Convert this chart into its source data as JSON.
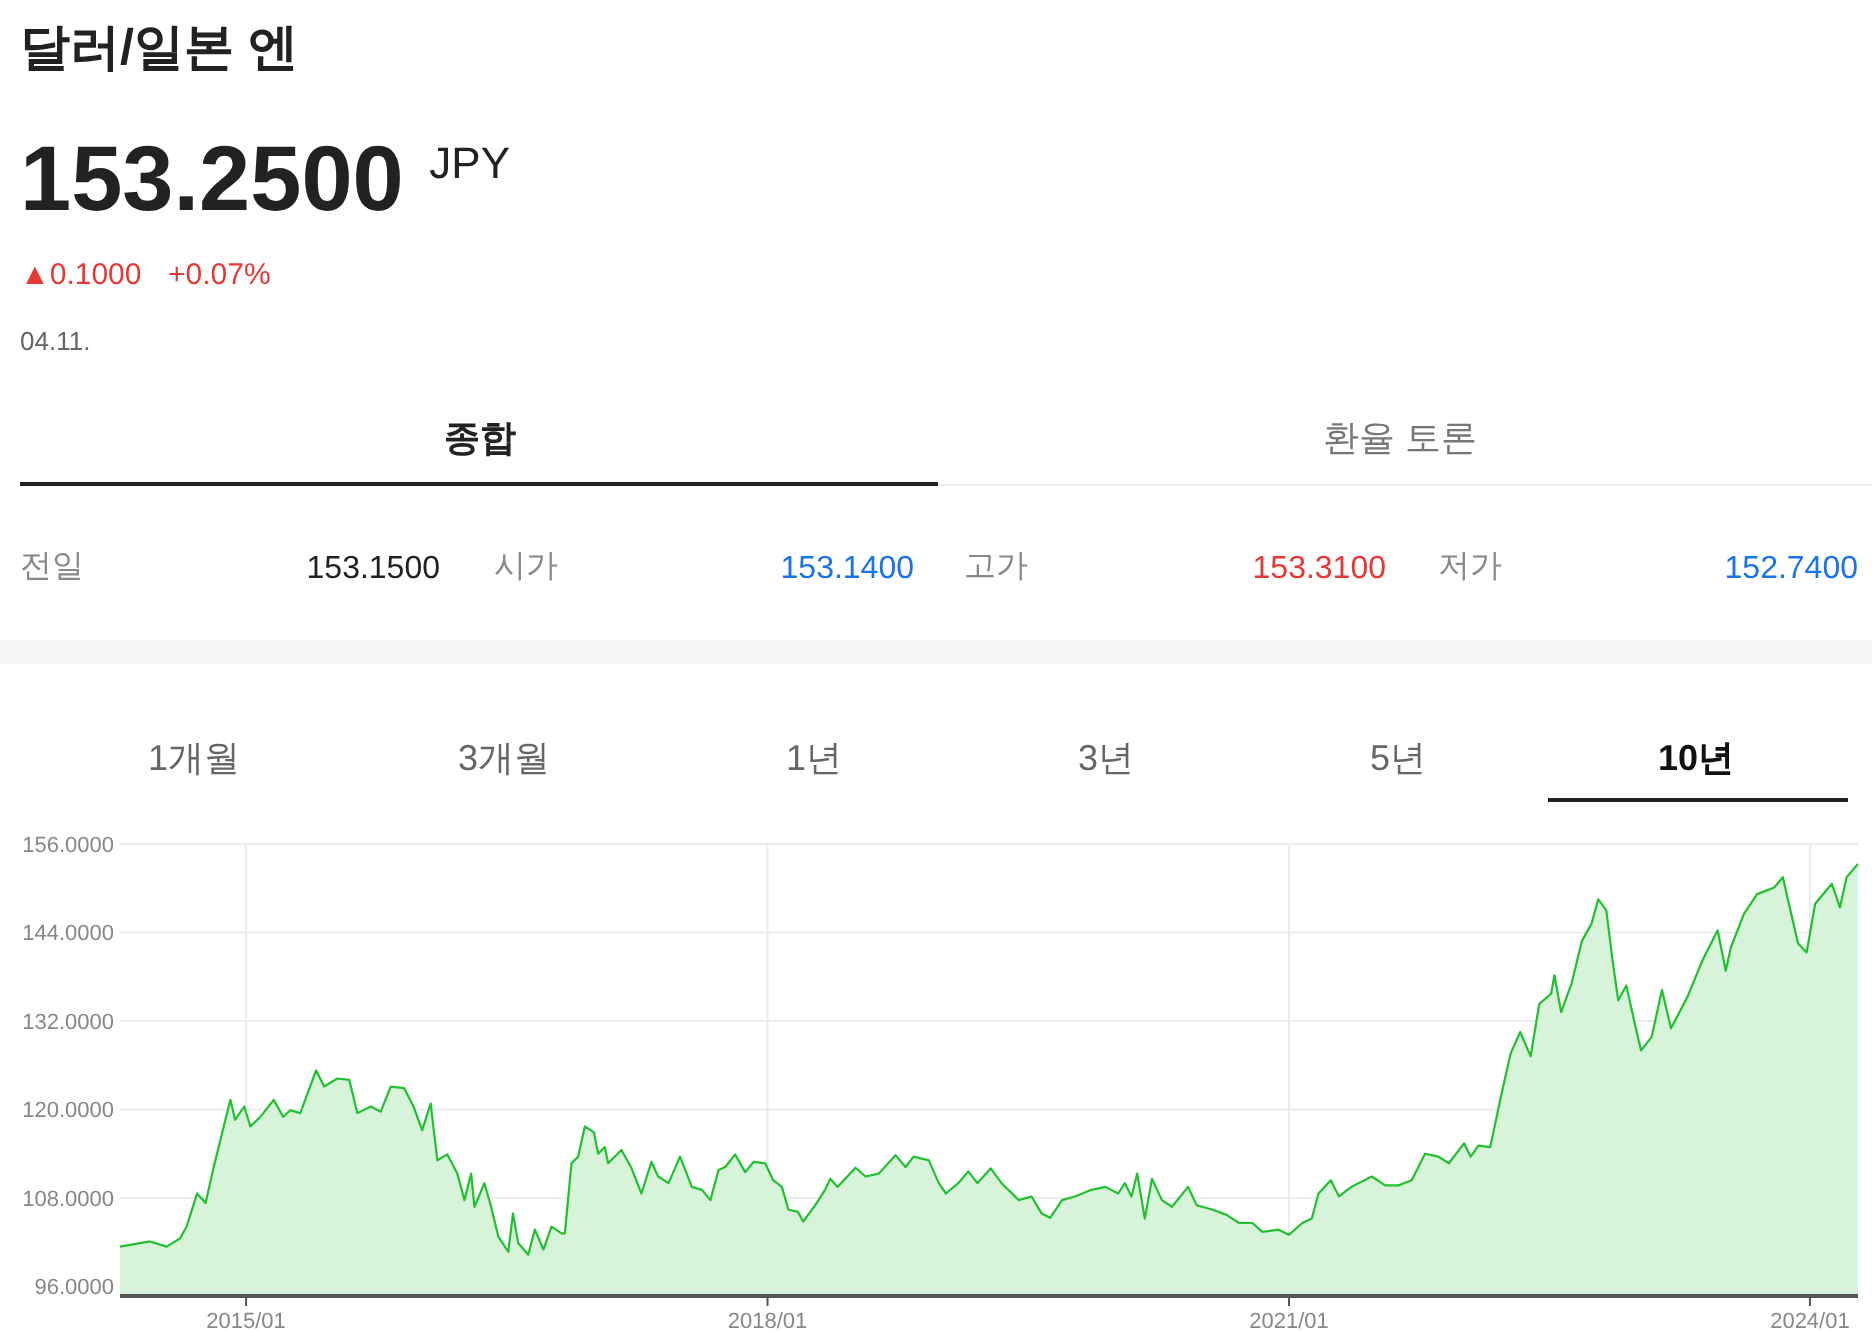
{
  "chart_data": {
    "type": "area",
    "title": "달러/일본 엔",
    "subtitle": "153.2500 $^{JPY}$",
    "annotations": [
      "▲0.1000",
      "+0.07%",
      "04.11.",
      "종합",
      "환율 토론",
      "전일",
      "153.1500",
      "시가",
      "153.1400",
      "고가",
      "153.3100",
      "저가",
      "152.7400",
      "1개월",
      "3개월",
      "1년",
      "3년",
      "5년",
      "10년"
    ],
    "xlim": [
      "2014-04-11",
      "2024-04-11"
    ],
    "xticks": [
      {
        "value": "2015-01",
        "label": "2015/01"
      },
      {
        "value": "2018-01",
        "label": "2018/01"
      },
      {
        "value": "2021-01",
        "label": "2021/01"
      },
      {
        "value": "2024-01",
        "label": "2024/01"
      }
    ],
    "ylim": [
      94.7,
      156
    ],
    "yticks": [
      {
        "value": 96,
        "label": "96.0000"
      },
      {
        "value": 108,
        "label": "108.0000"
      },
      {
        "value": 120,
        "label": "120.0000"
      },
      {
        "value": 132,
        "label": "132.0000"
      },
      {
        "value": 144,
        "label": "144.0000"
      },
      {
        "value": 156,
        "label": "156.0000"
      }
    ],
    "grid": true,
    "series": [
      {
        "color": "#1fc12f",
        "x": [
          "2014-04-11",
          "2014-06-13",
          "2014-07-18",
          "2014-08-15",
          "2014-08-29",
          "2014-09-20",
          "2014-10-08",
          "2014-10-25",
          "2014-11-15",
          "2014-11-29",
          "2014-12-09",
          "2014-12-28",
          "2015-01-10",
          "2015-01-31",
          "2015-02-28",
          "2015-03-20",
          "2015-04-04",
          "2015-04-25",
          "2015-05-28",
          "2015-06-14",
          "2015-07-12",
          "2015-08-06",
          "2015-08-23",
          "2015-09-20",
          "2015-10-11",
          "2015-11-01",
          "2015-11-29",
          "2015-12-19",
          "2016-01-06",
          "2016-01-24",
          "2016-02-07",
          "2016-02-28",
          "2016-03-20",
          "2016-04-04",
          "2016-04-18",
          "2016-04-25",
          "2016-05-16",
          "2016-05-30",
          "2016-06-14",
          "2016-07-05",
          "2016-07-15",
          "2016-07-26",
          "2016-08-16",
          "2016-08-30",
          "2016-09-17",
          "2016-10-04",
          "2016-10-25",
          "2016-11-01",
          "2016-11-15",
          "2016-11-29",
          "2016-12-13",
          "2017-01-01",
          "2017-01-10",
          "2017-01-24",
          "2017-01-31",
          "2017-02-28",
          "2017-03-20",
          "2017-04-11",
          "2017-05-02",
          "2017-05-16",
          "2017-06-07",
          "2017-07-01",
          "2017-07-26",
          "2017-08-16",
          "2017-09-03",
          "2017-09-20",
          "2017-10-04",
          "2017-10-25",
          "2017-11-15",
          "2017-12-03",
          "2017-12-27",
          "2018-01-13",
          "2018-01-31",
          "2018-02-14",
          "2018-03-06",
          "2018-03-17",
          "2018-04-11",
          "2018-05-02",
          "2018-05-13",
          "2018-05-28",
          "2018-07-05",
          "2018-07-26",
          "2018-08-23",
          "2018-09-27",
          "2018-10-18",
          "2018-11-04",
          "2018-12-06",
          "2018-12-27",
          "2019-01-11",
          "2019-02-06",
          "2019-02-27",
          "2019-03-18",
          "2019-04-15",
          "2019-05-08",
          "2019-06-13",
          "2019-07-10",
          "2019-07-31",
          "2019-08-18",
          "2019-09-12",
          "2019-10-09",
          "2019-11-13",
          "2019-12-12",
          "2020-01-08",
          "2020-01-22",
          "2020-02-05",
          "2020-02-17",
          "2020-03-04",
          "2020-03-19",
          "2020-04-09",
          "2020-04-30",
          "2020-06-03",
          "2020-06-21",
          "2020-07-25",
          "2020-08-23",
          "2020-09-18",
          "2020-10-16",
          "2020-11-06",
          "2020-12-10",
          "2021-01-01",
          "2021-01-29",
          "2021-02-18",
          "2021-03-04",
          "2021-03-30",
          "2021-04-16",
          "2021-05-12",
          "2021-06-24",
          "2021-07-22",
          "2021-08-19",
          "2021-09-16",
          "2021-10-14",
          "2021-11-11",
          "2021-12-03",
          "2022-01-04",
          "2022-01-18",
          "2022-02-03",
          "2022-02-28",
          "2022-03-24",
          "2022-04-12",
          "2022-05-02",
          "2022-05-24",
          "2022-06-11",
          "2022-07-06",
          "2022-07-13",
          "2022-07-27",
          "2022-08-18",
          "2022-09-09",
          "2022-09-29",
          "2022-10-13",
          "2022-10-30",
          "2022-11-13",
          "2022-11-24",
          "2022-12-11",
          "2022-12-29",
          "2023-01-11",
          "2023-02-02",
          "2023-02-24",
          "2023-03-15",
          "2023-04-18",
          "2023-05-20",
          "2023-06-21",
          "2023-07-08",
          "2023-07-19",
          "2023-08-15",
          "2023-09-12",
          "2023-10-18",
          "2023-11-05",
          "2023-12-07",
          "2023-12-25",
          "2024-01-12",
          "2024-02-16",
          "2024-03-04",
          "2024-03-18",
          "2024-04-11"
        ],
        "values": [
          101.4,
          102.1,
          101.4,
          102.5,
          104.1,
          108.6,
          107.3,
          112.2,
          117.7,
          121.3,
          118.6,
          120.4,
          117.7,
          119.0,
          121.3,
          119.0,
          119.9,
          119.5,
          125.3,
          123.1,
          124.2,
          124.0,
          119.5,
          120.4,
          119.7,
          123.1,
          122.9,
          120.4,
          117.2,
          120.8,
          113.1,
          113.9,
          111.3,
          107.7,
          111.3,
          106.8,
          110.0,
          106.8,
          102.8,
          100.7,
          105.9,
          101.9,
          100.3,
          103.7,
          101.0,
          104.1,
          103.2,
          103.2,
          112.7,
          113.6,
          117.7,
          116.9,
          114.0,
          114.9,
          112.7,
          114.5,
          112.2,
          108.6,
          112.9,
          110.9,
          110.0,
          113.6,
          109.5,
          109.1,
          107.7,
          111.8,
          112.2,
          113.9,
          111.5,
          112.9,
          112.7,
          110.4,
          109.5,
          106.4,
          106.1,
          104.8,
          107.0,
          109.1,
          110.6,
          109.5,
          112.1,
          110.9,
          111.3,
          113.8,
          112.2,
          113.6,
          113.1,
          110.0,
          108.6,
          110.0,
          111.6,
          110.0,
          112.0,
          110.0,
          107.7,
          108.2,
          105.9,
          105.3,
          107.7,
          108.2,
          109.1,
          109.5,
          108.6,
          110.0,
          108.2,
          111.3,
          105.2,
          110.6,
          107.7,
          106.8,
          109.5,
          107.0,
          106.4,
          105.7,
          104.6,
          104.6,
          103.4,
          103.7,
          103.0,
          104.6,
          105.2,
          108.6,
          110.4,
          108.2,
          109.5,
          110.9,
          109.7,
          109.7,
          110.4,
          114.0,
          113.6,
          112.7,
          115.4,
          113.6,
          115.1,
          114.9,
          122.2,
          127.6,
          130.5,
          127.2,
          134.3,
          135.7,
          138.2,
          133.2,
          137.1,
          142.9,
          145.2,
          148.5,
          147.0,
          139.8,
          134.8,
          136.8,
          131.6,
          128.0,
          129.8,
          136.2,
          131.0,
          135.2,
          140.2,
          144.3,
          138.8,
          142.0,
          146.5,
          149.2,
          150.1,
          151.5,
          142.5,
          141.3,
          147.9,
          150.6,
          147.4,
          151.5,
          153.3
        ]
      }
    ]
  }
}
